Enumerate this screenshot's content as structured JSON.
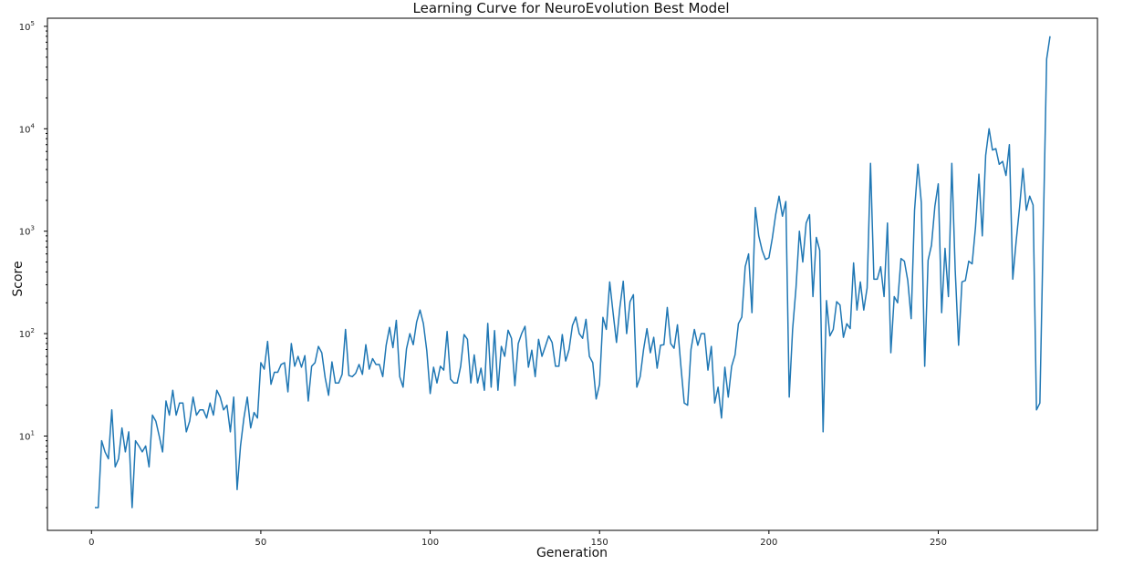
{
  "chart_data": {
    "type": "line",
    "title": "Learning Curve for NeuroEvolution Best Model",
    "xlabel": "Generation",
    "ylabel": "Score",
    "yscale": "log",
    "xlim": [
      -13,
      297
    ],
    "ylim": [
      1.2,
      120000
    ],
    "grid": false,
    "legend": "none",
    "line_color": "#1f77b4",
    "x_ticks": [
      0,
      50,
      100,
      150,
      200,
      250
    ],
    "y_ticks": [
      {
        "value": 10,
        "base": "10",
        "exp": "1"
      },
      {
        "value": 100,
        "base": "10",
        "exp": "2"
      },
      {
        "value": 1000,
        "base": "10",
        "exp": "3"
      },
      {
        "value": 10000,
        "base": "10",
        "exp": "4"
      },
      {
        "value": 100000,
        "base": "10",
        "exp": "5"
      }
    ],
    "series": [
      {
        "x_start": 1,
        "values": [
          2,
          2,
          9,
          7,
          6,
          18,
          5,
          6,
          12,
          7,
          11,
          2,
          9,
          8,
          7,
          8,
          5,
          16,
          14,
          10,
          7,
          22,
          16,
          28,
          16,
          21,
          21,
          11,
          14,
          24,
          16,
          18,
          18,
          15,
          21,
          16,
          28,
          24,
          18,
          20,
          11,
          24,
          3,
          8,
          15,
          24,
          12,
          17,
          15,
          52,
          45,
          84,
          32,
          42,
          42,
          50,
          52,
          27,
          80,
          48,
          60,
          47,
          61,
          22,
          48,
          52,
          75,
          65,
          37,
          25,
          53,
          33,
          33,
          40,
          110,
          39,
          38,
          41,
          50,
          40,
          78,
          45,
          57,
          50,
          50,
          38,
          77,
          115,
          73,
          135,
          38,
          30,
          71,
          100,
          78,
          130,
          170,
          125,
          68,
          26,
          47,
          33,
          48,
          44,
          105,
          36,
          33,
          33,
          48,
          98,
          88,
          33,
          62,
          33,
          46,
          28,
          126,
          30,
          107,
          28,
          75,
          60,
          108,
          90,
          31,
          80,
          100,
          118,
          47,
          69,
          38,
          88,
          60,
          75,
          95,
          82,
          48,
          48,
          98,
          54,
          70,
          120,
          145,
          100,
          90,
          138,
          60,
          52,
          23,
          32,
          144,
          110,
          320,
          160,
          82,
          180,
          325,
          100,
          205,
          240,
          30,
          38,
          70,
          112,
          65,
          92,
          46,
          77,
          78,
          180,
          80,
          72,
          122,
          49,
          21,
          20,
          70,
          110,
          77,
          100,
          100,
          44,
          75,
          21,
          30,
          15,
          47,
          24,
          48,
          62,
          125,
          145,
          450,
          600,
          160,
          1700,
          900,
          650,
          530,
          550,
          850,
          1450,
          2200,
          1400,
          1950,
          24,
          110,
          280,
          1000,
          500,
          1200,
          1450,
          230,
          870,
          650,
          11,
          210,
          95,
          110,
          205,
          190,
          92,
          125,
          112,
          490,
          170,
          320,
          170,
          280,
          4600,
          340,
          340,
          450,
          230,
          1200,
          65,
          230,
          200,
          540,
          510,
          330,
          140,
          1600,
          4500,
          1900,
          48,
          520,
          730,
          1750,
          2900,
          160,
          680,
          230,
          4600,
          420,
          77,
          320,
          330,
          510,
          480,
          1100,
          3600,
          900,
          5500,
          10000,
          6200,
          6400,
          4500,
          4800,
          3500,
          7000,
          340,
          800,
          1700,
          4100,
          1600,
          2200,
          1800,
          18,
          21,
          1000,
          48000,
          80000
        ]
      }
    ]
  }
}
